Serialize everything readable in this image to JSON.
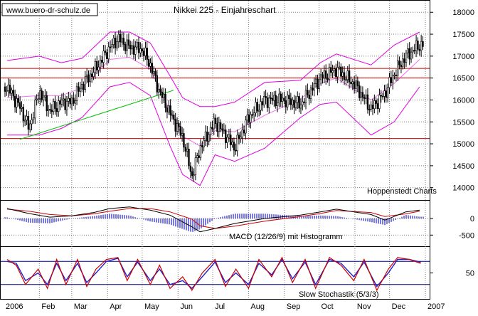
{
  "header": {
    "website": "www.buero-dr-schulz.de",
    "title": "Nikkei 225 - Einjahreschart"
  },
  "labels": {
    "source": "Hoppenstedt Charts",
    "macd": "MACD (12/26/9) mit Histogramm",
    "stoch": "Slow Stochastik (5/3/3)"
  },
  "colors": {
    "background": "#ffffff",
    "candle": "#000000",
    "bollinger": "#e000e0",
    "horizontal_lines": "#cc0000",
    "trendline": "#00c000",
    "macd_line": "#000000",
    "signal_line": "#cc0000",
    "histogram": "#3333cc",
    "stoch_k": "#cc0000",
    "stoch_d": "#2222cc",
    "stoch_levels": "#000080",
    "grid": "#808080"
  },
  "chart_data": [
    {
      "type": "candlestick",
      "title": "Nikkei 225 - Einjahreschart",
      "x_ticks": [
        "2006",
        "Feb",
        "Mar",
        "Apr",
        "May",
        "Jun",
        "Jul",
        "Aug",
        "Sep",
        "Oct",
        "Nov",
        "Dec",
        "2007"
      ],
      "y_ticks": [
        14000,
        14500,
        15000,
        15500,
        16000,
        16500,
        17000,
        17500,
        18000
      ],
      "ylim": [
        13800,
        18150
      ],
      "horizontal_lines": [
        16720,
        16500,
        15120
      ],
      "trendline": [
        {
          "x": "2006-01-15",
          "y": 15100
        },
        {
          "x": "2006-05-28",
          "y": 16220
        }
      ],
      "price_series": {
        "x": [
          "2006-01-04",
          "2006-01-16",
          "2006-01-23",
          "2006-02-01",
          "2006-02-10",
          "2006-02-20",
          "2006-03-01",
          "2006-03-10",
          "2006-03-20",
          "2006-04-03",
          "2006-04-10",
          "2006-04-20",
          "2006-05-01",
          "2006-05-08",
          "2006-05-15",
          "2006-05-25",
          "2006-06-05",
          "2006-06-13",
          "2006-06-20",
          "2006-07-03",
          "2006-07-12",
          "2006-07-20",
          "2006-08-01",
          "2006-08-15",
          "2006-09-01",
          "2006-09-15",
          "2006-10-02",
          "2006-10-16",
          "2006-11-01",
          "2006-11-15",
          "2006-11-27",
          "2006-12-05",
          "2006-12-15",
          "2006-12-27"
        ],
        "close": [
          16300,
          15800,
          15350,
          16200,
          15750,
          15950,
          15950,
          16350,
          16650,
          17200,
          17400,
          17200,
          17150,
          16800,
          16250,
          15700,
          15150,
          14250,
          14900,
          15500,
          15200,
          14900,
          15600,
          16000,
          16000,
          15900,
          16500,
          16700,
          16350,
          15800,
          16150,
          16600,
          17000,
          17250
        ]
      },
      "bollinger_bands": {
        "x": [
          "2006-01-04",
          "2006-02-01",
          "2006-02-20",
          "2006-03-10",
          "2006-04-03",
          "2006-04-20",
          "2006-05-08",
          "2006-05-25",
          "2006-06-05",
          "2006-06-20",
          "2006-07-03",
          "2006-07-20",
          "2006-08-15",
          "2006-09-15",
          "2006-10-02",
          "2006-10-16",
          "2006-11-15",
          "2006-12-05",
          "2006-12-27"
        ],
        "upper": [
          16900,
          17000,
          16850,
          16950,
          17550,
          17550,
          17300,
          16550,
          16050,
          15850,
          15850,
          15950,
          16400,
          16450,
          16850,
          17050,
          16800,
          17250,
          17550
        ],
        "lower": [
          15200,
          15200,
          15350,
          15600,
          16300,
          16400,
          16100,
          14950,
          14300,
          14050,
          14750,
          14600,
          14900,
          15600,
          15900,
          15950,
          15200,
          15500,
          16300
        ]
      }
    },
    {
      "type": "line",
      "title": "MACD (12/26/9) mit Histogramm",
      "y_ticks": [
        0,
        -500
      ],
      "ylim": [
        -750,
        450
      ],
      "x": [
        "2006-01-04",
        "2006-01-23",
        "2006-02-10",
        "2006-03-01",
        "2006-03-20",
        "2006-04-03",
        "2006-04-20",
        "2006-05-08",
        "2006-05-25",
        "2006-06-13",
        "2006-06-20",
        "2006-07-03",
        "2006-07-20",
        "2006-08-15",
        "2006-09-15",
        "2006-10-02",
        "2006-10-16",
        "2006-11-15",
        "2006-11-27",
        "2006-12-15",
        "2006-12-27"
      ],
      "series": [
        {
          "values": [
            300,
            150,
            40,
            80,
            180,
            300,
            350,
            250,
            100,
            -250,
            -400,
            -300,
            -150,
            0,
            100,
            200,
            280,
            120,
            -50,
            200,
            250
          ]
        },
        {
          "values": [
            280,
            220,
            120,
            80,
            140,
            220,
            300,
            300,
            200,
            -20,
            -220,
            -300,
            -230,
            -80,
            60,
            150,
            240,
            180,
            60,
            140,
            220
          ]
        }
      ]
    },
    {
      "type": "line",
      "title": "Slow Stochastik (5/3/3)",
      "y_ticks": [
        50
      ],
      "ylim": [
        -10,
        110
      ],
      "levels": [
        80,
        20
      ],
      "x": [
        "2006-01-04",
        "2006-01-12",
        "2006-01-20",
        "2006-01-31",
        "2006-02-08",
        "2006-02-16",
        "2006-02-24",
        "2006-03-06",
        "2006-03-14",
        "2006-03-22",
        "2006-03-31",
        "2006-04-10",
        "2006-04-18",
        "2006-04-27",
        "2006-05-08",
        "2006-05-16",
        "2006-05-25",
        "2006-06-05",
        "2006-06-13",
        "2006-06-22",
        "2006-07-03",
        "2006-07-12",
        "2006-07-21",
        "2006-08-01",
        "2006-08-10",
        "2006-08-21",
        "2006-08-30",
        "2006-09-08",
        "2006-09-19",
        "2006-09-28",
        "2006-10-10",
        "2006-10-20",
        "2006-10-31",
        "2006-11-09",
        "2006-11-20",
        "2006-11-30",
        "2006-12-08",
        "2006-12-18",
        "2006-12-28"
      ],
      "series": [
        {
          "values": [
            85,
            70,
            20,
            60,
            10,
            85,
            20,
            85,
            15,
            60,
            85,
            90,
            30,
            85,
            20,
            70,
            10,
            40,
            5,
            50,
            85,
            15,
            60,
            10,
            85,
            40,
            90,
            25,
            85,
            10,
            90,
            70,
            30,
            85,
            5,
            60,
            90,
            85,
            75
          ]
        },
        {
          "values": [
            80,
            75,
            30,
            50,
            20,
            75,
            30,
            75,
            25,
            50,
            80,
            88,
            40,
            78,
            30,
            60,
            20,
            30,
            10,
            40,
            78,
            25,
            50,
            20,
            75,
            45,
            85,
            35,
            78,
            20,
            85,
            75,
            40,
            78,
            15,
            50,
            85,
            85,
            78
          ]
        }
      ]
    }
  ]
}
